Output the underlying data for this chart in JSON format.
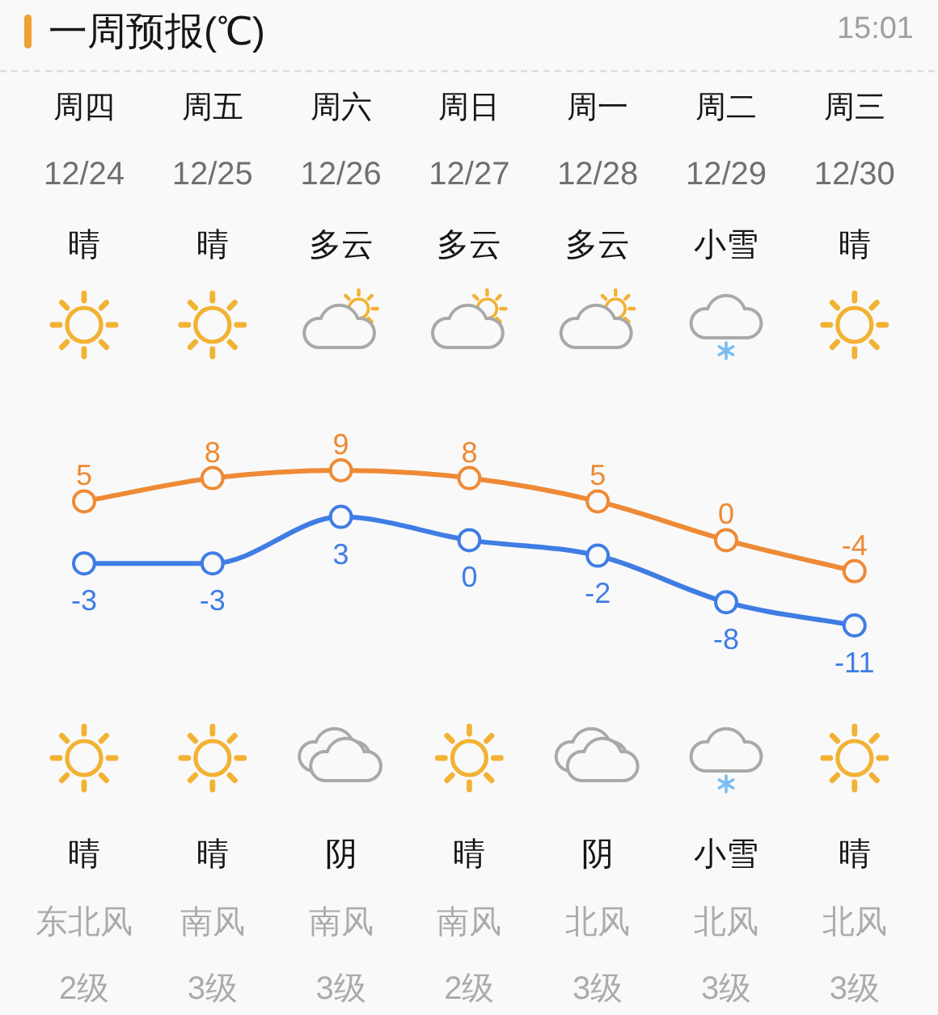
{
  "chart_data": {
    "type": "line",
    "title": "一周预报(℃)",
    "subtitle": "15:01",
    "categories": [
      "周四\n12/24\n晴",
      "周五\n12/25\n晴",
      "周六\n12/26\n多云",
      "周日\n12/27\n多云",
      "周一\n12/28\n多云",
      "周二\n12/29\n小雪",
      "周三\n12/30\n晴"
    ],
    "series": [
      {
        "color": "#ee8a35",
        "values": [
          5,
          8,
          9,
          8,
          5,
          0,
          -4
        ]
      },
      {
        "color": "#3f7de4",
        "values": [
          -3,
          -3,
          3,
          0,
          -2,
          -8,
          -11
        ]
      }
    ],
    "marker": "circle",
    "data_labels": true,
    "annotations": [
      "晴",
      "晴",
      "阴",
      "晴",
      "阴",
      "小雪",
      "晴",
      "东北风",
      "南风",
      "南风",
      "南风",
      "北风",
      "北风",
      "北风",
      "2级",
      "3级",
      "3级",
      "2级",
      "3级",
      "3级",
      "3级"
    ]
  }
}
